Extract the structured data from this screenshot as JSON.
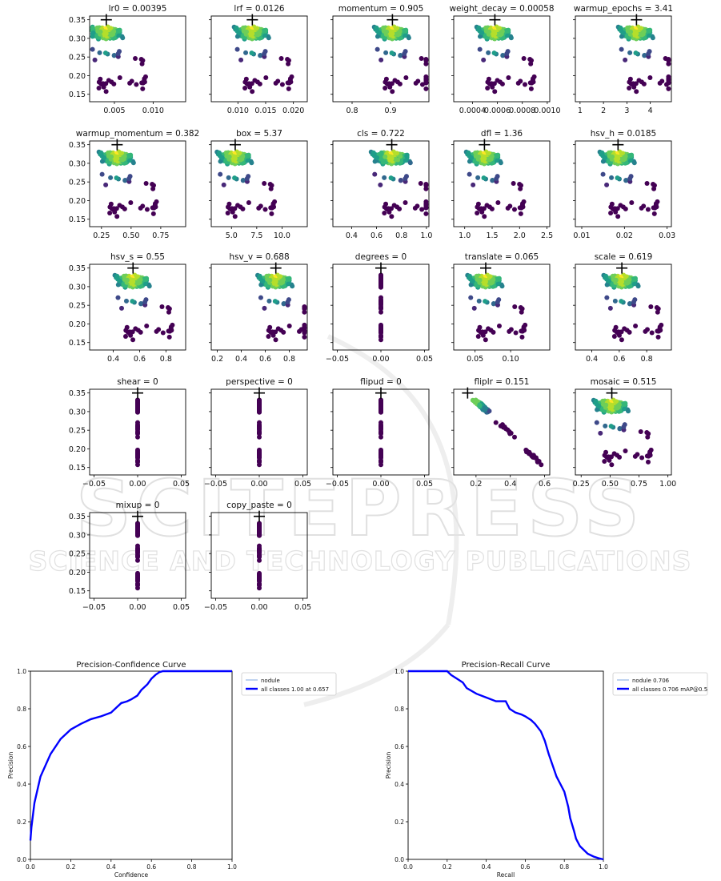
{
  "watermark": {
    "main": "SCITEPRESS",
    "sub": "SCIENCE AND TECHNOLOGY PUBLICATIONS"
  },
  "colors": {
    "cool": "#440154",
    "mid": "#31688e",
    "warm": "#35b779",
    "hot": "#fde725",
    "pc_line": "#0000ff",
    "pc_light": "#7fa7e0"
  },
  "chart_data": [
    {
      "type": "scatter",
      "group": "hyperparameter_evolution",
      "ylim": [
        0.13,
        0.36
      ],
      "yticks": [
        "0.15",
        "0.20",
        "0.25",
        "0.30",
        "0.35"
      ],
      "panels": [
        {
          "title": "lr0 = 0.00395",
          "xlim": [
            0.0018,
            0.0142
          ],
          "xticks": [
            "0.005",
            "0.010"
          ],
          "best": 0.00395,
          "dist": "lr0"
        },
        {
          "title": "lrf = 0.0126",
          "xlim": [
            0.0052,
            0.0225
          ],
          "xticks": [
            "0.010",
            "0.015",
            "0.020"
          ],
          "best": 0.0126,
          "dist": "lrf"
        },
        {
          "title": "momentum = 0.905",
          "xlim": [
            0.75,
            1.0
          ],
          "xticks": [
            "0.8",
            "0.9"
          ],
          "best": 0.905,
          "dist": "momentum"
        },
        {
          "title": "weight_decay = 0.00058",
          "xlim": [
            0.00025,
            0.00102
          ],
          "xticks": [
            "0.0004",
            "0.0006",
            "0.0008",
            "0.0010"
          ],
          "best": 0.00058,
          "dist": "wd"
        },
        {
          "title": "warmup_epochs = 3.41",
          "xlim": [
            0.8,
            4.9
          ],
          "xticks": [
            "1",
            "2",
            "3",
            "4"
          ],
          "best": 3.41,
          "dist": "we"
        },
        {
          "title": "warmup_momentum = 0.382",
          "xlim": [
            0.15,
            0.96
          ],
          "xticks": [
            "0.25",
            "0.50",
            "0.75"
          ],
          "best": 0.382,
          "dist": "wm"
        },
        {
          "title": "box = 5.37",
          "xlim": [
            3.0,
            12.5
          ],
          "xticks": [
            "5.0",
            "7.5",
            "10.0"
          ],
          "best": 5.37,
          "dist": "box"
        },
        {
          "title": "cls = 0.722",
          "xlim": [
            0.25,
            1.02
          ],
          "xticks": [
            "0.4",
            "0.6",
            "0.8",
            "1.0"
          ],
          "best": 0.722,
          "dist": "cls"
        },
        {
          "title": "dfl = 1.36",
          "xlim": [
            0.8,
            2.55
          ],
          "xticks": [
            "1.0",
            "1.5",
            "2.0",
            "2.5"
          ],
          "best": 1.36,
          "dist": "dfl"
        },
        {
          "title": "hsv_h = 0.0185",
          "xlim": [
            0.0085,
            0.031
          ],
          "xticks": [
            "0.01",
            "0.02",
            "0.03"
          ],
          "best": 0.0185,
          "dist": "hsvh"
        },
        {
          "title": "hsv_s = 0.55",
          "xlim": [
            0.22,
            0.95
          ],
          "xticks": [
            "0.4",
            "0.6",
            "0.8"
          ],
          "best": 0.55,
          "dist": "hsvs"
        },
        {
          "title": "hsv_v = 0.688",
          "xlim": [
            0.15,
            0.95
          ],
          "xticks": [
            "0.2",
            "0.4",
            "0.6",
            "0.8"
          ],
          "best": 0.688,
          "dist": "hsvv"
        },
        {
          "title": "degrees = 0",
          "xlim": [
            -0.055,
            0.055
          ],
          "xticks": [
            "−0.05",
            "0.00",
            "0.05"
          ],
          "best": 0,
          "dist": "zero"
        },
        {
          "title": "translate = 0.065",
          "xlim": [
            0.02,
            0.155
          ],
          "xticks": [
            "0.05",
            "0.10"
          ],
          "best": 0.065,
          "dist": "translate"
        },
        {
          "title": "scale = 0.619",
          "xlim": [
            0.28,
            0.98
          ],
          "xticks": [
            "0.4",
            "0.6",
            "0.8"
          ],
          "best": 0.619,
          "dist": "scale"
        },
        {
          "title": "shear = 0",
          "xlim": [
            -0.055,
            0.055
          ],
          "xticks": [
            "−0.05",
            "0.00",
            "0.05"
          ],
          "best": 0,
          "dist": "zero"
        },
        {
          "title": "perspective = 0",
          "xlim": [
            -0.055,
            0.055
          ],
          "xticks": [
            "−0.05",
            "0.00",
            "0.05"
          ],
          "best": 0,
          "dist": "zero"
        },
        {
          "title": "flipud = 0",
          "xlim": [
            -0.055,
            0.055
          ],
          "xticks": [
            "−0.05",
            "0.00",
            "0.05"
          ],
          "best": 0,
          "dist": "zero"
        },
        {
          "title": "fliplr = 0.151",
          "xlim": [
            0.07,
            0.63
          ],
          "xticks": [
            "0.2",
            "0.4",
            "0.6"
          ],
          "best": 0.151,
          "dist": "fliplr"
        },
        {
          "title": "mosaic = 0.515",
          "xlim": [
            0.2,
            1.03
          ],
          "xticks": [
            "0.25",
            "0.50",
            "0.75",
            "1.00"
          ],
          "best": 0.515,
          "dist": "mosaic"
        },
        {
          "title": "mixup = 0",
          "xlim": [
            -0.055,
            0.055
          ],
          "xticks": [
            "−0.05",
            "0.00",
            "0.05"
          ],
          "best": 0,
          "dist": "zero"
        },
        {
          "title": "copy_paste = 0",
          "xlim": [
            -0.055,
            0.055
          ],
          "xticks": [
            "−0.05",
            "0.00",
            "0.05"
          ],
          "best": 0,
          "dist": "zero"
        }
      ]
    },
    {
      "type": "line",
      "title": "Precision-Confidence Curve",
      "xlabel": "Confidence",
      "ylabel": "Precision",
      "xlim": [
        0,
        1
      ],
      "ylim": [
        0,
        1
      ],
      "xticks": [
        "0.0",
        "0.2",
        "0.4",
        "0.6",
        "0.8",
        "1.0"
      ],
      "yticks": [
        "0.0",
        "0.2",
        "0.4",
        "0.6",
        "0.8",
        "1.0"
      ],
      "legend_position": "outside-right",
      "series": [
        {
          "name": "nodule",
          "style": "thin",
          "x": [
            0.0,
            0.005,
            0.02,
            0.05,
            0.1,
            0.15,
            0.2,
            0.25,
            0.3,
            0.35,
            0.4,
            0.43,
            0.45,
            0.48,
            0.5,
            0.53,
            0.55,
            0.58,
            0.6,
            0.62,
            0.64,
            0.657,
            0.7,
            0.8,
            0.9,
            1.0
          ],
          "y": [
            0.1,
            0.17,
            0.3,
            0.44,
            0.56,
            0.64,
            0.69,
            0.72,
            0.745,
            0.76,
            0.78,
            0.81,
            0.835,
            0.84,
            0.85,
            0.87,
            0.9,
            0.93,
            0.96,
            0.98,
            0.995,
            1.0,
            1.0,
            1.0,
            1.0,
            1.0
          ]
        },
        {
          "name": "all classes 1.00 at 0.657",
          "style": "bold",
          "x": [
            0.0,
            0.005,
            0.02,
            0.05,
            0.1,
            0.15,
            0.2,
            0.25,
            0.3,
            0.35,
            0.4,
            0.43,
            0.45,
            0.48,
            0.5,
            0.53,
            0.55,
            0.58,
            0.6,
            0.62,
            0.64,
            0.657,
            0.7,
            0.8,
            0.9,
            1.0
          ],
          "y": [
            0.1,
            0.17,
            0.3,
            0.44,
            0.56,
            0.64,
            0.69,
            0.72,
            0.745,
            0.76,
            0.78,
            0.81,
            0.83,
            0.84,
            0.85,
            0.87,
            0.9,
            0.93,
            0.96,
            0.98,
            0.995,
            1.0,
            1.0,
            1.0,
            1.0,
            1.0
          ]
        }
      ]
    },
    {
      "type": "line",
      "title": "Precision-Recall Curve",
      "xlabel": "Recall",
      "ylabel": "Precision",
      "xlim": [
        0,
        1
      ],
      "ylim": [
        0,
        1
      ],
      "xticks": [
        "0.0",
        "0.2",
        "0.4",
        "0.6",
        "0.8",
        "1.0"
      ],
      "yticks": [
        "0.0",
        "0.2",
        "0.4",
        "0.6",
        "0.8",
        "1.0"
      ],
      "legend_position": "outside-right",
      "series": [
        {
          "name": "nodule 0.706",
          "style": "thin",
          "x": [
            0.0,
            0.2,
            0.22,
            0.25,
            0.28,
            0.3,
            0.35,
            0.4,
            0.45,
            0.5,
            0.52,
            0.55,
            0.58,
            0.6,
            0.63,
            0.65,
            0.68,
            0.7,
            0.72,
            0.74,
            0.76,
            0.78,
            0.8,
            0.82,
            0.83,
            0.85,
            0.86,
            0.88,
            0.9,
            0.92,
            0.95,
            0.98,
            1.0
          ],
          "y": [
            1.0,
            1.0,
            0.98,
            0.96,
            0.94,
            0.91,
            0.88,
            0.86,
            0.84,
            0.84,
            0.8,
            0.78,
            0.77,
            0.76,
            0.74,
            0.72,
            0.68,
            0.63,
            0.56,
            0.5,
            0.44,
            0.4,
            0.36,
            0.28,
            0.22,
            0.15,
            0.11,
            0.07,
            0.05,
            0.03,
            0.015,
            0.005,
            0.0
          ]
        },
        {
          "name": "all classes 0.706 mAP@0.5",
          "style": "bold",
          "x": [
            0.0,
            0.2,
            0.22,
            0.25,
            0.28,
            0.3,
            0.35,
            0.4,
            0.45,
            0.5,
            0.52,
            0.55,
            0.58,
            0.6,
            0.63,
            0.65,
            0.68,
            0.7,
            0.72,
            0.74,
            0.76,
            0.78,
            0.8,
            0.82,
            0.83,
            0.85,
            0.86,
            0.88,
            0.9,
            0.92,
            0.95,
            0.98,
            1.0
          ],
          "y": [
            1.0,
            1.0,
            0.98,
            0.96,
            0.94,
            0.91,
            0.88,
            0.86,
            0.84,
            0.84,
            0.8,
            0.78,
            0.77,
            0.76,
            0.74,
            0.72,
            0.68,
            0.63,
            0.56,
            0.5,
            0.44,
            0.4,
            0.36,
            0.28,
            0.22,
            0.15,
            0.11,
            0.07,
            0.05,
            0.03,
            0.015,
            0.005,
            0.0
          ]
        }
      ]
    }
  ]
}
